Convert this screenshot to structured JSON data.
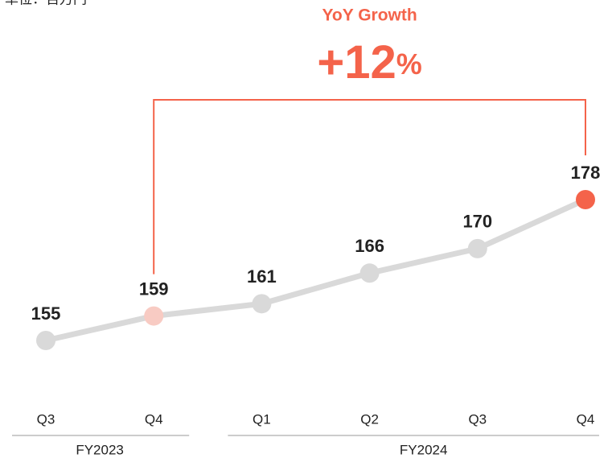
{
  "chart_data": {
    "type": "line",
    "unit_note": "単位：百万円",
    "categories": [
      "Q3",
      "Q4",
      "Q1",
      "Q2",
      "Q3",
      "Q4"
    ],
    "groups": [
      {
        "name": "FY2023",
        "span": 2
      },
      {
        "name": "FY2024",
        "span": 4
      }
    ],
    "values": [
      155,
      159,
      161,
      166,
      170,
      178
    ],
    "line_color": "#d9d9d9",
    "point_colors": [
      "#d9d9d9",
      "#f8cbc3",
      "#d9d9d9",
      "#d9d9d9",
      "#d9d9d9",
      "#f4634a"
    ],
    "annotation": {
      "title": "YoY Growth",
      "value": 12,
      "value_label": "+12",
      "unit": "%",
      "color": "#f4634a"
    }
  }
}
